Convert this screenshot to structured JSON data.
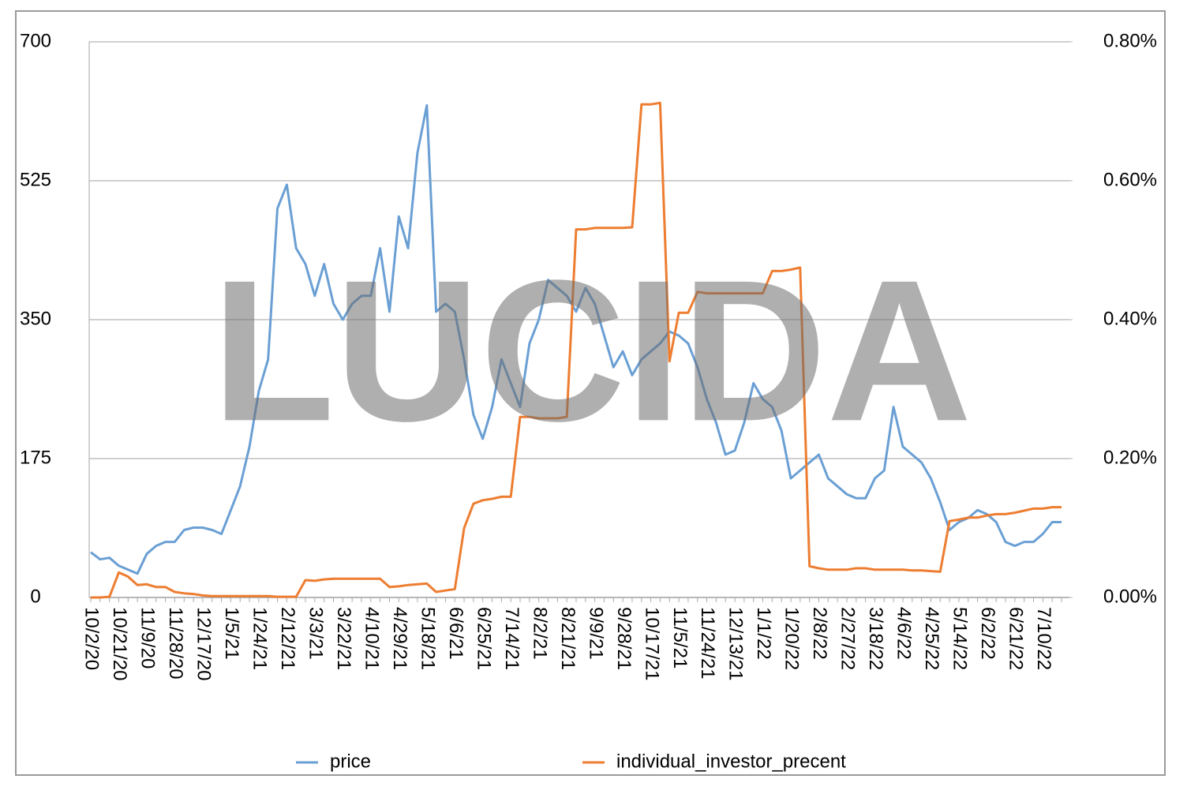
{
  "chart_data": {
    "type": "line",
    "watermark": "LUCIDA",
    "categories": [
      "10/2/20",
      null,
      null,
      "10/21/20",
      null,
      null,
      "11/9/20",
      null,
      null,
      "11/28/20",
      null,
      null,
      "12/17/20",
      null,
      null,
      "1/5/21",
      null,
      null,
      "1/24/21",
      null,
      null,
      "2/12/21",
      null,
      null,
      "3/3/21",
      null,
      null,
      "3/22/21",
      null,
      null,
      "4/10/21",
      null,
      null,
      "4/29/21",
      null,
      null,
      "5/18/21",
      null,
      null,
      "6/6/21",
      null,
      null,
      "6/25/21",
      null,
      null,
      "7/14/21",
      null,
      null,
      "8/2/21",
      null,
      null,
      "8/21/21",
      null,
      null,
      "9/9/21",
      null,
      null,
      "9/28/21",
      null,
      null,
      "10/17/21",
      null,
      null,
      "11/5/21",
      null,
      null,
      "11/24/21",
      null,
      null,
      "12/13/21",
      null,
      null,
      "1/1/22",
      null,
      null,
      "1/20/22",
      null,
      null,
      "2/8/22",
      null,
      null,
      "2/27/22",
      null,
      null,
      "3/18/22",
      null,
      null,
      "4/6/22",
      null,
      null,
      "4/25/22",
      null,
      null,
      "5/14/22",
      null,
      null,
      "6/2/22",
      null,
      null,
      "6/21/22",
      null,
      null,
      "7/10/22",
      null,
      null
    ],
    "series": [
      {
        "name": "price",
        "color": "#6a9fd4",
        "axis": "y",
        "values": [
          57,
          48,
          50,
          40,
          35,
          30,
          55,
          65,
          70,
          70,
          85,
          88,
          88,
          85,
          80,
          110,
          140,
          190,
          260,
          300,
          490,
          520,
          440,
          420,
          380,
          420,
          370,
          350,
          370,
          380,
          380,
          440,
          360,
          480,
          440,
          560,
          620,
          360,
          370,
          360,
          300,
          230,
          200,
          240,
          300,
          270,
          240,
          320,
          350,
          400,
          390,
          380,
          360,
          390,
          370,
          330,
          290,
          310,
          280,
          300,
          310,
          320,
          335,
          330,
          320,
          290,
          250,
          220,
          180,
          185,
          220,
          270,
          250,
          240,
          210,
          150,
          160,
          170,
          180,
          150,
          140,
          130,
          125,
          125,
          150,
          160,
          240,
          190,
          180,
          170,
          150,
          120,
          85,
          95,
          100,
          110,
          105,
          95,
          70,
          65,
          70,
          70,
          80,
          95,
          95
        ]
      },
      {
        "name": "individual_investor_precent",
        "color": "#ed7d31",
        "axis": "y2",
        "values": [
          0,
          0,
          0.001,
          0.036,
          0.03,
          0.018,
          0.019,
          0.015,
          0.015,
          0.008,
          0.006,
          0.005,
          0.003,
          0.002,
          0.002,
          0.002,
          0.002,
          0.002,
          0.002,
          0.002,
          0.001,
          0.001,
          0.001,
          0.025,
          0.024,
          0.026,
          0.027,
          0.027,
          0.027,
          0.027,
          0.027,
          0.027,
          0.015,
          0.016,
          0.018,
          0.019,
          0.02,
          0.008,
          0.01,
          0.012,
          0.1,
          0.135,
          0.14,
          0.142,
          0.145,
          0.145,
          0.26,
          0.26,
          0.258,
          0.258,
          0.258,
          0.26,
          0.53,
          0.53,
          0.532,
          0.532,
          0.532,
          0.532,
          0.533,
          0.71,
          0.71,
          0.712,
          0.34,
          0.41,
          0.41,
          0.44,
          0.438,
          0.438,
          0.438,
          0.438,
          0.438,
          0.438,
          0.438,
          0.47,
          0.47,
          0.472,
          0.475,
          0.045,
          0.042,
          0.04,
          0.04,
          0.04,
          0.042,
          0.042,
          0.04,
          0.04,
          0.04,
          0.04,
          0.039,
          0.039,
          0.038,
          0.037,
          0.11,
          0.112,
          0.115,
          0.115,
          0.118,
          0.12,
          0.12,
          0.122,
          0.125,
          0.128,
          0.128,
          0.13,
          0.13
        ]
      }
    ],
    "ylim": [
      0,
      700
    ],
    "yticks": [
      0,
      175,
      350,
      525,
      700
    ],
    "y2lim": [
      0,
      0.8
    ],
    "y2ticks": [
      {
        "value": 0,
        "label": "0.00%"
      },
      {
        "value": 0.2,
        "label": "0.20%"
      },
      {
        "value": 0.4,
        "label": "0.40%"
      },
      {
        "value": 0.6,
        "label": "0.60%"
      },
      {
        "value": 0.8,
        "label": "0.80%"
      }
    ],
    "grid": true,
    "legend": "bottom"
  }
}
